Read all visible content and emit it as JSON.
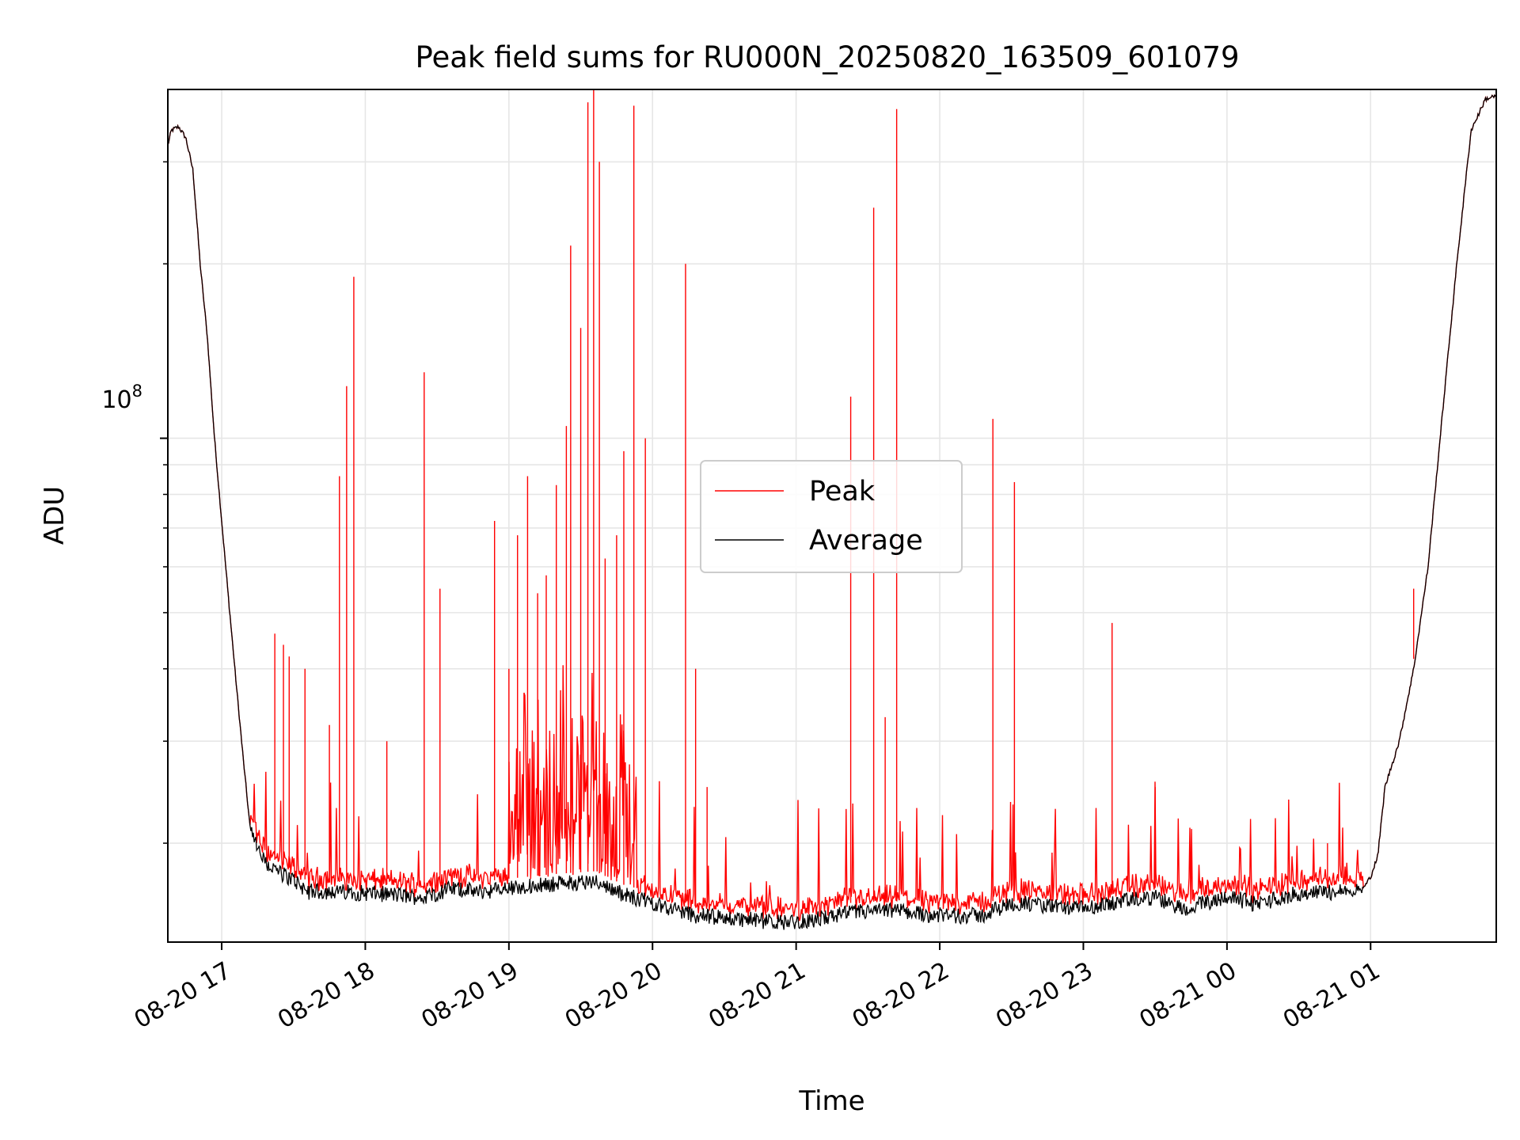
{
  "chart_data": {
    "type": "line",
    "title": "Peak field sums for RU000N_20250820_163509_601079",
    "xlabel": "Time",
    "ylabel": "ADU",
    "y_scale": "log",
    "y_tick_major_label": {
      "base": "10",
      "exponent": "8"
    },
    "x_tick_labels": [
      "08-20 17",
      "08-20 18",
      "08-20 19",
      "08-20 20",
      "08-20 21",
      "08-20 22",
      "08-20 23",
      "08-21 00",
      "08-21 01"
    ],
    "x_ticks_hours": [
      17,
      18,
      19,
      20,
      21,
      22,
      23,
      24,
      25
    ],
    "xlim_hours": [
      16.625,
      25.875
    ],
    "ylim": [
      13500000,
      400000000
    ],
    "y_minor_ticks": [
      20000000,
      30000000,
      40000000,
      50000000,
      60000000,
      70000000,
      80000000,
      90000000,
      200000000,
      300000000
    ],
    "grid": true,
    "legend": {
      "placement": "center",
      "entries": [
        {
          "name": "Peak",
          "color": "#ff0000"
        },
        {
          "name": "Average",
          "color": "#000000"
        }
      ]
    },
    "baseline_profile_hours": [
      16.625,
      16.65,
      16.7,
      16.75,
      16.8,
      16.85,
      16.9,
      16.95,
      17.0,
      17.05,
      17.1,
      17.15,
      17.2,
      17.25,
      17.3,
      17.4,
      17.5,
      17.6,
      17.8,
      18.0,
      18.2,
      18.4,
      18.6,
      18.8,
      19.0,
      19.3,
      19.6,
      19.8,
      20.0,
      20.3,
      20.6,
      20.9,
      21.1,
      21.4,
      21.7,
      22.0,
      22.3,
      22.5,
      22.7,
      23.0,
      23.3,
      23.5,
      23.7,
      24.0,
      24.2,
      24.5,
      24.8,
      24.95,
      25.0,
      25.05,
      25.1,
      25.2,
      25.3,
      25.4,
      25.5,
      25.6,
      25.7,
      25.8,
      25.875
    ],
    "baseline_profile_adu": [
      320000000,
      340000000,
      345000000,
      330000000,
      290000000,
      200000000,
      150000000,
      100000000,
      72000000,
      52000000,
      38000000,
      28000000,
      21000000,
      19500000,
      18500000,
      17800000,
      17300000,
      16500000,
      16500000,
      16400000,
      16300000,
      16100000,
      16700000,
      16500000,
      16700000,
      17000000,
      17200000,
      16300000,
      15800000,
      15000000,
      14800000,
      14600000,
      14700000,
      15200000,
      15300000,
      15000000,
      15000000,
      15800000,
      15600000,
      15400000,
      15900000,
      16100000,
      15400000,
      16200000,
      15700000,
      16400000,
      16500000,
      16700000,
      17500000,
      19000000,
      25000000,
      30000000,
      40000000,
      60000000,
      110000000,
      200000000,
      340000000,
      385000000,
      390000000
    ],
    "peak_spikes": [
      {
        "hour": 17.37,
        "adu": 46000000
      },
      {
        "hour": 17.43,
        "adu": 44000000
      },
      {
        "hour": 17.47,
        "adu": 42000000
      },
      {
        "hour": 17.58,
        "adu": 40000000
      },
      {
        "hour": 17.75,
        "adu": 32000000
      },
      {
        "hour": 17.82,
        "adu": 86000000
      },
      {
        "hour": 17.87,
        "adu": 123000000
      },
      {
        "hour": 17.92,
        "adu": 190000000
      },
      {
        "hour": 18.15,
        "adu": 30000000
      },
      {
        "hour": 18.41,
        "adu": 130000000
      },
      {
        "hour": 18.52,
        "adu": 55000000
      },
      {
        "hour": 18.9,
        "adu": 72000000
      },
      {
        "hour": 19.0,
        "adu": 40000000
      },
      {
        "hour": 19.06,
        "adu": 68000000
      },
      {
        "hour": 19.13,
        "adu": 86000000
      },
      {
        "hour": 19.2,
        "adu": 54000000
      },
      {
        "hour": 19.26,
        "adu": 58000000
      },
      {
        "hour": 19.33,
        "adu": 83000000
      },
      {
        "hour": 19.4,
        "adu": 105000000
      },
      {
        "hour": 19.43,
        "adu": 215000000
      },
      {
        "hour": 19.5,
        "adu": 155000000
      },
      {
        "hour": 19.55,
        "adu": 380000000
      },
      {
        "hour": 19.59,
        "adu": 410000000
      },
      {
        "hour": 19.63,
        "adu": 300000000
      },
      {
        "hour": 19.67,
        "adu": 62000000
      },
      {
        "hour": 19.75,
        "adu": 68000000
      },
      {
        "hour": 19.8,
        "adu": 95000000
      },
      {
        "hour": 19.87,
        "adu": 375000000
      },
      {
        "hour": 19.95,
        "adu": 100000000
      },
      {
        "hour": 20.23,
        "adu": 200000000
      },
      {
        "hour": 20.3,
        "adu": 40000000
      },
      {
        "hour": 20.38,
        "adu": 25000000
      },
      {
        "hour": 21.38,
        "adu": 118000000
      },
      {
        "hour": 21.54,
        "adu": 250000000
      },
      {
        "hour": 21.62,
        "adu": 33000000
      },
      {
        "hour": 21.7,
        "adu": 370000000
      },
      {
        "hour": 22.37,
        "adu": 108000000
      },
      {
        "hour": 22.52,
        "adu": 84000000
      },
      {
        "hour": 23.2,
        "adu": 48000000
      },
      {
        "hour": 23.5,
        "adu": 25000000
      },
      {
        "hour": 24.7,
        "adu": 20000000
      },
      {
        "hour": 25.3,
        "adu": 55000000
      }
    ]
  }
}
